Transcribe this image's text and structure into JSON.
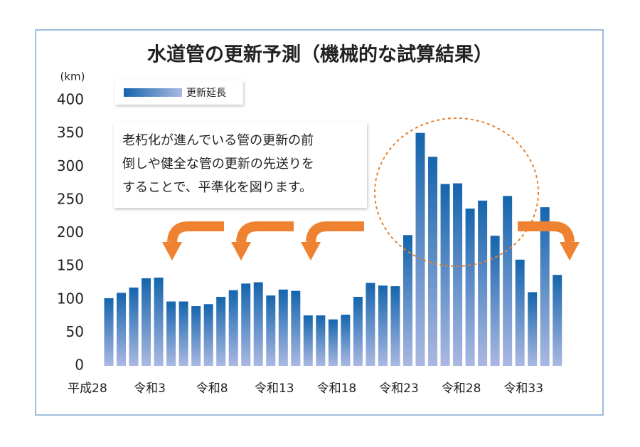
{
  "chart_data": {
    "type": "bar",
    "title": "水道管の更新予測（機械的な試算結果）",
    "y_unit": "(km)",
    "annotation": [
      "老朽化が進んでいる管の更新の前",
      "倒しや健全な管の更新の先送りを",
      "することで、平準化を図ります。"
    ],
    "categories": [
      "平成28",
      null,
      null,
      null,
      null,
      "令和3",
      null,
      null,
      null,
      null,
      "令和8",
      null,
      null,
      null,
      null,
      "令和13",
      null,
      null,
      null,
      null,
      "令和18",
      null,
      null,
      null,
      null,
      "令和23",
      null,
      null,
      null,
      null,
      "令和28",
      null,
      null,
      null,
      null,
      "令和33",
      null
    ],
    "series": [
      {
        "name": "更新延長",
        "color": "#1565ad",
        "values": [
          102,
          110,
          118,
          132,
          133,
          97,
          97,
          90,
          93,
          104,
          114,
          124,
          126,
          106,
          115,
          113,
          76,
          76,
          70,
          77,
          104,
          125,
          121,
          120,
          197,
          351,
          315,
          274,
          275,
          237,
          249,
          196,
          256,
          160,
          111,
          239,
          137
        ]
      }
    ],
    "ylim": [
      0,
      400
    ],
    "yticks": [
      0,
      50,
      100,
      150,
      200,
      250,
      300,
      350,
      400
    ],
    "grid": false
  }
}
